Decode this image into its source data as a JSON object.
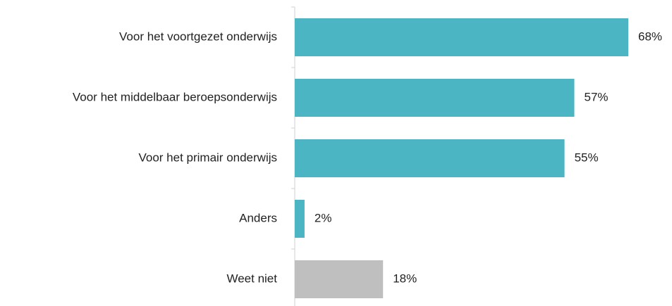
{
  "chart_data": {
    "type": "barh",
    "categories": [
      "Voor het voortgezet onderwijs",
      "Voor het middelbaar beroepsonderwijs",
      "Voor het primair onderwijs",
      "Anders",
      "Weet niet"
    ],
    "values": [
      68,
      57,
      55,
      2,
      18
    ],
    "value_labels": [
      "68%",
      "57%",
      "55%",
      "2%",
      "18%"
    ],
    "colors": [
      "#4bb5c4",
      "#4bb5c4",
      "#4bb5c4",
      "#4bb5c4",
      "#bfbfbf"
    ]
  }
}
